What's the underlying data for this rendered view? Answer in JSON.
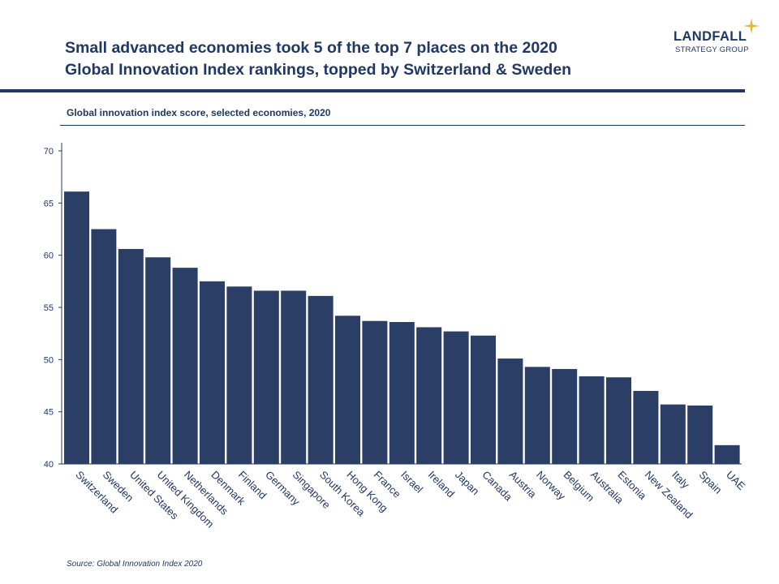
{
  "header": {
    "title_line1": "Small advanced economies took 5 of the top 7 places on the 2020",
    "title_line2": "Global Innovation Index rankings, topped by Switzerland & Sweden"
  },
  "logo": {
    "name": "LANDFALL",
    "tagline": "STRATEGY GROUP",
    "accent_color": "#e2b83b"
  },
  "chart_data": {
    "type": "bar",
    "title": "Global innovation index score, selected economies, 2020",
    "categories": [
      "Switzerland",
      "Sweden",
      "United States",
      "United Kingdom",
      "Netherlands",
      "Denmark",
      "Finland",
      "Germany",
      "Singapore",
      "South Korea",
      "Hong Kong",
      "France",
      "Israel",
      "Ireland",
      "Japan",
      "Canada",
      "Austria",
      "Norway",
      "Belgium",
      "Australia",
      "Estonia",
      "New Zealand",
      "Italy",
      "Spain",
      "UAE"
    ],
    "values": [
      66.1,
      62.5,
      60.6,
      59.8,
      58.8,
      57.5,
      57.0,
      56.6,
      56.6,
      56.1,
      54.2,
      53.7,
      53.6,
      53.1,
      52.7,
      52.3,
      50.1,
      49.3,
      49.1,
      48.4,
      48.3,
      47.0,
      45.7,
      45.6,
      41.8
    ],
    "ylim": [
      40,
      70
    ],
    "yticks": [
      40,
      45,
      50,
      55,
      60,
      65,
      70
    ],
    "xlabel": "",
    "ylabel": "",
    "bar_color": "#2b3e66",
    "grid": false,
    "legend": "none"
  },
  "footer": {
    "source": "Source: Global Innovation Index 2020"
  }
}
